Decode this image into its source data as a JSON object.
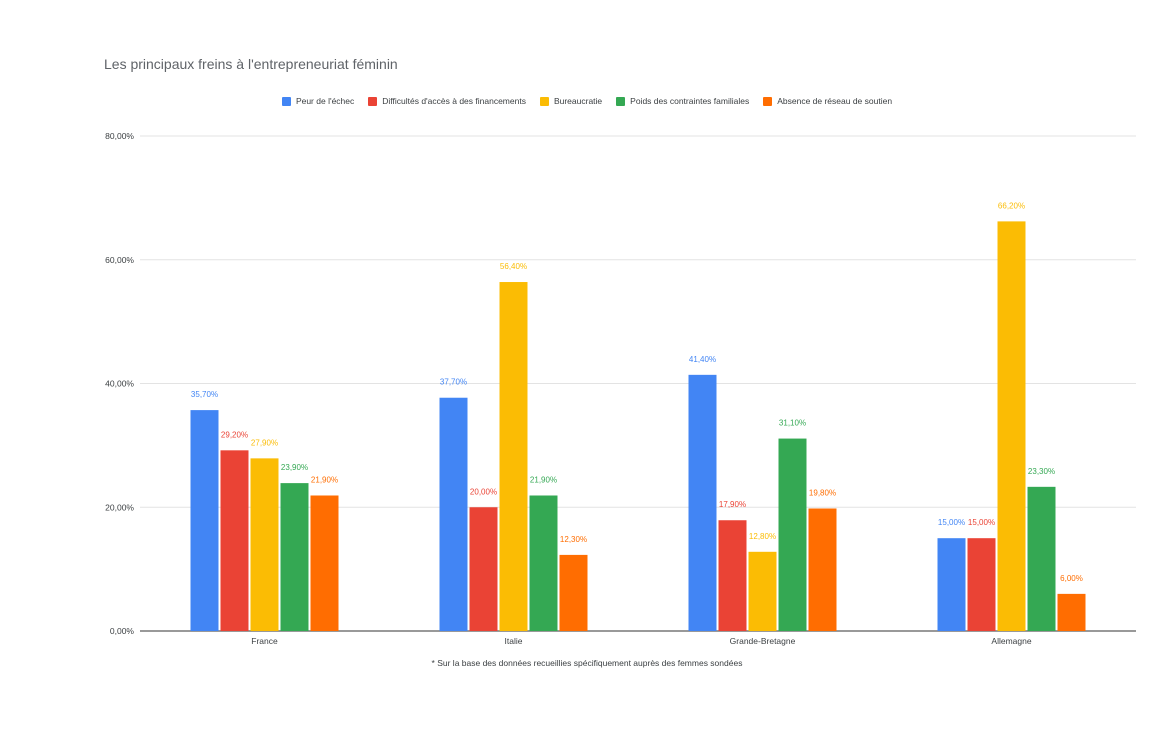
{
  "chart_data": {
    "type": "bar",
    "title": "Les principaux freins à l'entrepreneuriat féminin",
    "categories": [
      "France",
      "Italie",
      "Grande-Bretagne",
      "Allemagne"
    ],
    "series": [
      {
        "name": "Peur de l'échec",
        "color": "#4285f4",
        "values": [
          35.7,
          37.7,
          41.4,
          15.0
        ],
        "labels": [
          "35,70%",
          "37,70%",
          "41,40%",
          "15,00%"
        ]
      },
      {
        "name": "Difficultés d'accès à des financements",
        "color": "#ea4335",
        "values": [
          29.2,
          20.0,
          17.9,
          15.0
        ],
        "labels": [
          "29,20%",
          "20,00%",
          "17,90%",
          "15,00%"
        ]
      },
      {
        "name": "Bureaucratie",
        "color": "#fbbc04",
        "values": [
          27.9,
          56.4,
          12.8,
          66.2
        ],
        "labels": [
          "27,90%",
          "56,40%",
          "12,80%",
          "66,20%"
        ]
      },
      {
        "name": "Poids des contraintes familiales",
        "color": "#34a853",
        "values": [
          23.9,
          21.9,
          31.1,
          23.3
        ],
        "labels": [
          "23,90%",
          "21,90%",
          "31,10%",
          "23,30%"
        ]
      },
      {
        "name": "Absence de réseau de soutien",
        "color": "#ff6d01",
        "values": [
          21.9,
          12.3,
          19.8,
          6.0
        ],
        "labels": [
          "21,90%",
          "12,30%",
          "19,80%",
          "6,00%"
        ]
      }
    ],
    "ylim": [
      0,
      80
    ],
    "yticks": [
      0,
      20,
      40,
      60,
      80
    ],
    "ytick_labels": [
      "0,00%",
      "20,00%",
      "40,00%",
      "60,00%",
      "80,00%"
    ],
    "grid": true,
    "legend_position": "top",
    "footnote": "* Sur la base des données recueillies spécifiquement auprès des femmes sondées"
  }
}
